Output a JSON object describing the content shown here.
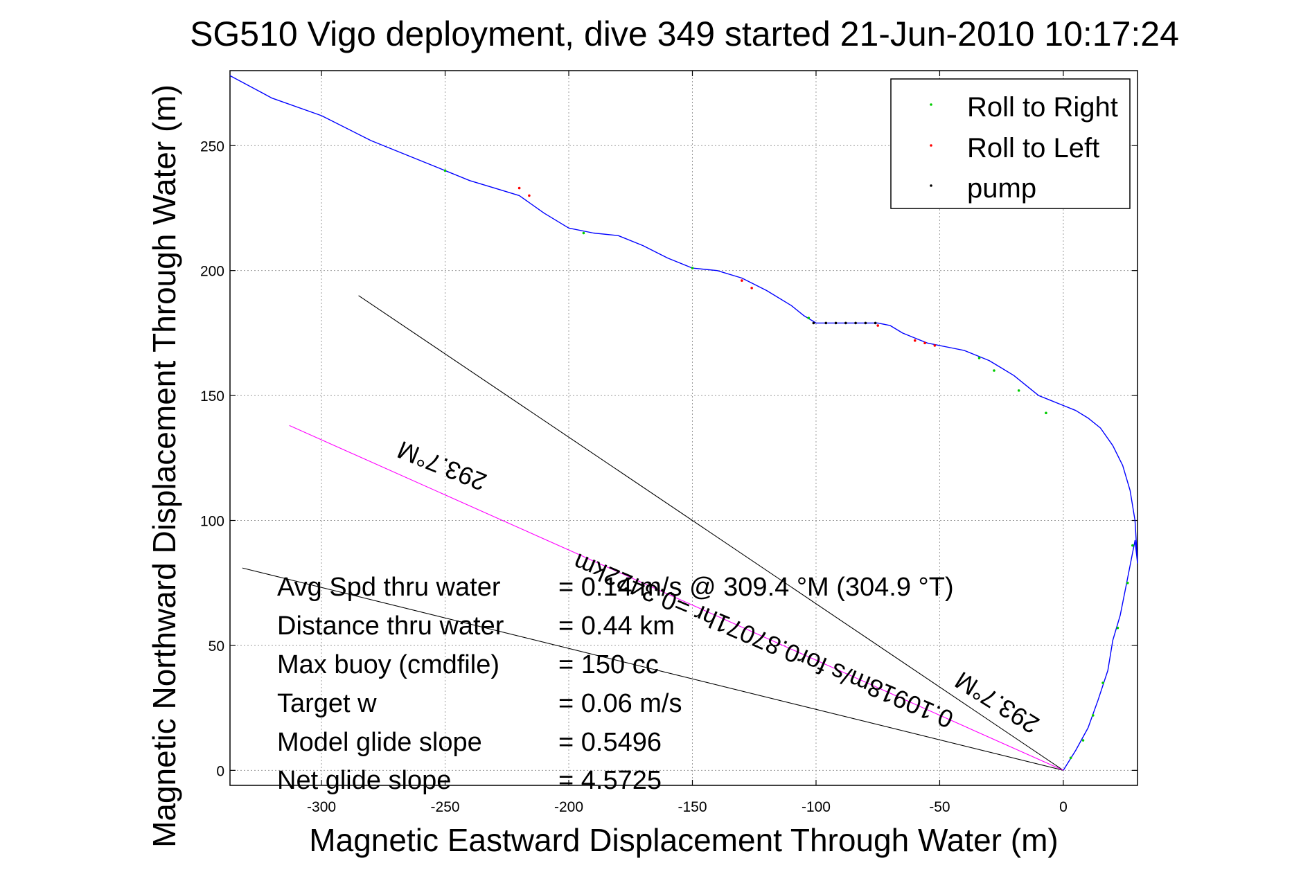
{
  "chart_data": {
    "type": "line",
    "title": "SG510 Vigo deployment, dive 349 started 21-Jun-2010 10:17:24",
    "xlabel": "Magnetic Eastward Displacement Through Water (m)",
    "ylabel": "Magnetic Northward Displacement Through Water (m)",
    "xlim": [
      -337,
      30
    ],
    "ylim": [
      -6,
      280
    ],
    "x_ticks": [
      -300,
      -250,
      -200,
      -150,
      -100,
      -50,
      0
    ],
    "y_ticks": [
      0,
      50,
      100,
      150,
      200,
      250
    ],
    "grid": true,
    "legend_position": "top-right",
    "legend": [
      {
        "label": "Roll to Right",
        "color": "#00cc00"
      },
      {
        "label": "Roll to Left",
        "color": "#ff0000"
      },
      {
        "label": "pump",
        "color": "#000000"
      }
    ],
    "series": [
      {
        "kind": "track",
        "color": "#0000ff",
        "x": [
          0,
          5,
          10,
          14,
          18,
          20,
          23,
          25,
          27,
          29,
          30,
          29,
          27,
          24,
          20,
          15,
          10,
          5,
          0,
          -5,
          -10,
          -15,
          -20,
          -25,
          -30,
          -35,
          -40,
          -45,
          -50,
          -55,
          -60,
          -65,
          -70,
          -75,
          -80,
          -85,
          -90,
          -95,
          -100,
          -105,
          -110,
          -120,
          -130,
          -140,
          -150,
          -160,
          -170,
          -180,
          -190,
          -200,
          -210,
          -220,
          -230,
          -240,
          -250,
          -260,
          -280,
          -300,
          -320,
          -337
        ],
        "y": [
          0,
          8,
          17,
          28,
          40,
          52,
          62,
          72,
          82,
          92,
          83,
          100,
          112,
          122,
          130,
          137,
          141,
          144,
          146,
          148,
          150,
          154,
          158,
          161,
          164,
          166,
          168,
          169,
          170,
          171,
          173,
          175,
          178,
          179,
          179,
          179,
          179,
          179,
          179,
          182,
          186,
          192,
          197,
          200,
          201,
          205,
          210,
          214,
          215,
          217,
          223,
          230,
          233,
          236,
          240,
          244,
          252,
          262,
          269,
          278
        ]
      },
      {
        "kind": "heading-line",
        "color": "#000000",
        "x": [
          0,
          -285
        ],
        "y": [
          0,
          190
        ]
      },
      {
        "kind": "heading-line",
        "color": "#000000",
        "x": [
          0,
          -332
        ],
        "y": [
          0,
          81
        ]
      },
      {
        "kind": "heading-line",
        "color": "#ff00ff",
        "x": [
          0,
          -313
        ],
        "y": [
          0,
          138
        ]
      }
    ],
    "markers": {
      "roll_right": {
        "x": [
          3,
          8,
          12,
          16,
          22,
          26,
          28,
          -7,
          -18,
          -28,
          -34,
          -103,
          -150,
          -194,
          -250
        ],
        "y": [
          5,
          12,
          22,
          35,
          57,
          75,
          90,
          143,
          152,
          160,
          165,
          181,
          201,
          215,
          240
        ]
      },
      "roll_left": {
        "x": [
          -220,
          -216,
          -130,
          -126,
          -60,
          -56,
          -52,
          -75
        ],
        "y": [
          233,
          230,
          196,
          193,
          172,
          171,
          170,
          178
        ]
      },
      "pump": {
        "x": [
          -101,
          -96,
          -92,
          -88,
          -84,
          -80,
          -76
        ],
        "y": [
          179,
          179,
          179,
          179,
          179,
          179,
          179
        ]
      }
    },
    "annotations": [
      {
        "text": "293.7°M",
        "x": -250,
        "y": 125,
        "rotation": 202
      },
      {
        "text": "293.7°M",
        "x": -25,
        "y": 30,
        "rotation": 212
      },
      {
        "text": "0.10918m/s for0.87071hr =0.3422km",
        "x": -120,
        "y": 55,
        "rotation": 203
      }
    ],
    "stats": [
      {
        "label": "Avg Spd thru water",
        "value": "=  0.14 m/s @ 309.4 °M (304.9 °T)"
      },
      {
        "label": "Distance thru water",
        "value": "=  0.44 km"
      },
      {
        "label": "Max buoy (cmdfile)",
        "value": "= 150 cc"
      },
      {
        "label": "Target w",
        "value": "= 0.06 m/s"
      },
      {
        "label": "Model glide slope",
        "value": "= 0.5496"
      },
      {
        "label": "Net glide slope",
        "value": "= 4.5725"
      }
    ]
  }
}
